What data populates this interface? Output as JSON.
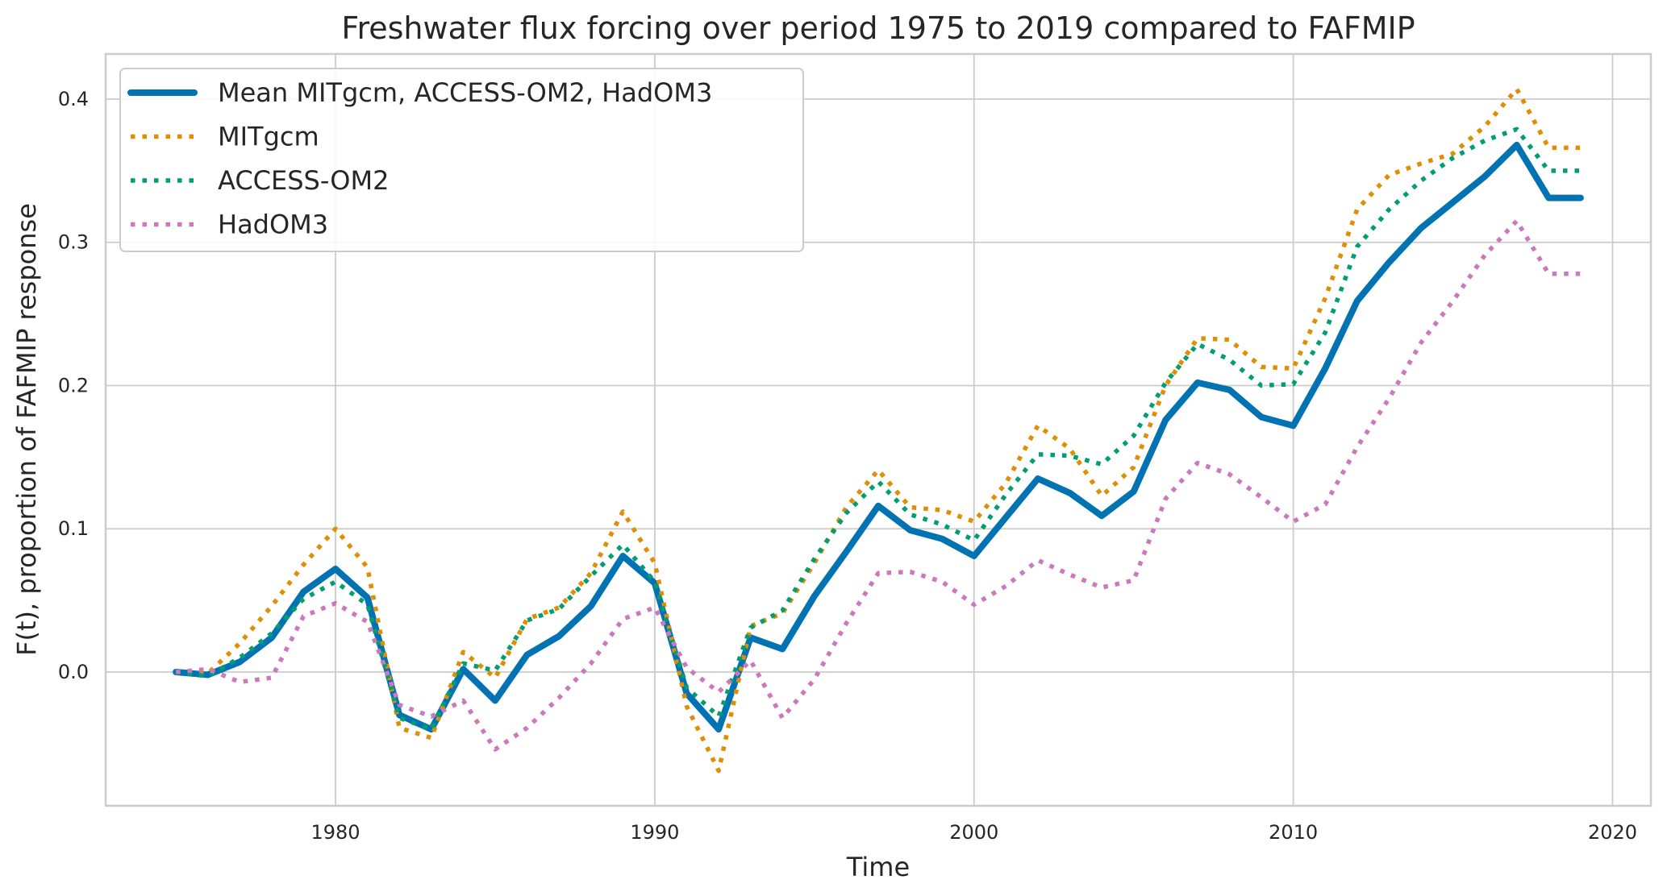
{
  "chart_data": {
    "type": "line",
    "title": "Freshwater flux forcing over period 1975 to 2019 compared to FAFMIP",
    "xlabel": "Time",
    "ylabel": "F(t), proportion of FAFMIP response",
    "xlim": [
      1972.8,
      2021.2
    ],
    "ylim": [
      -0.0934,
      0.4315
    ],
    "xticks": [
      1980,
      1990,
      2000,
      2010,
      2020
    ],
    "xtick_labels": [
      "1980",
      "1990",
      "2000",
      "2010",
      "2020"
    ],
    "yticks": [
      0.0,
      0.1,
      0.2,
      0.3,
      0.4
    ],
    "ytick_labels": [
      "0.0",
      "0.1",
      "0.2",
      "0.3",
      "0.4"
    ],
    "grid": true,
    "legend_position": "top-left",
    "x": [
      1975,
      1976,
      1977,
      1978,
      1979,
      1980,
      1981,
      1982,
      1983,
      1984,
      1985,
      1986,
      1987,
      1988,
      1989,
      1990,
      1991,
      1992,
      1993,
      1994,
      1995,
      1996,
      1997,
      1998,
      1999,
      2000,
      2001,
      2002,
      2003,
      2004,
      2005,
      2006,
      2007,
      2008,
      2009,
      2010,
      2011,
      2012,
      2013,
      2014,
      2015,
      2016,
      2017,
      2018,
      2019
    ],
    "series": [
      {
        "name": "Mean MITgcm, ACCESS-OM2, HadOM3",
        "color": "#0173b2",
        "style": "solid",
        "values": [
          0.0,
          -0.002,
          0.007,
          0.024,
          0.056,
          0.072,
          0.052,
          -0.03,
          -0.04,
          0.002,
          -0.02,
          0.012,
          0.025,
          0.046,
          0.081,
          0.062,
          -0.015,
          -0.04,
          0.024,
          0.016,
          0.053,
          0.084,
          0.116,
          0.099,
          0.093,
          0.081,
          0.108,
          0.135,
          0.125,
          0.109,
          0.126,
          0.176,
          0.202,
          0.197,
          0.178,
          0.172,
          0.212,
          0.259,
          0.286,
          0.31,
          0.328,
          0.346,
          0.368,
          0.331,
          0.331
        ]
      },
      {
        "name": "MITgcm",
        "color": "#de8f05",
        "style": "dotted",
        "values": [
          0.0,
          -0.001,
          0.02,
          0.046,
          0.075,
          0.1,
          0.073,
          -0.039,
          -0.046,
          0.014,
          -0.004,
          0.037,
          0.045,
          0.069,
          0.112,
          0.076,
          -0.024,
          -0.069,
          0.032,
          0.041,
          0.076,
          0.115,
          0.141,
          0.115,
          0.113,
          0.105,
          0.132,
          0.172,
          0.156,
          0.123,
          0.143,
          0.2,
          0.233,
          0.232,
          0.213,
          0.212,
          0.261,
          0.323,
          0.347,
          0.355,
          0.362,
          0.381,
          0.407,
          0.366,
          0.366
        ]
      },
      {
        "name": "ACCESS-OM2",
        "color": "#029e73",
        "style": "dotted",
        "values": [
          0.0,
          -0.003,
          0.01,
          0.027,
          0.051,
          0.063,
          0.047,
          -0.032,
          -0.04,
          0.006,
          0.001,
          0.036,
          0.044,
          0.067,
          0.089,
          0.063,
          -0.011,
          -0.031,
          0.031,
          0.043,
          0.079,
          0.111,
          0.133,
          0.11,
          0.103,
          0.092,
          0.124,
          0.152,
          0.151,
          0.145,
          0.165,
          0.202,
          0.229,
          0.218,
          0.2,
          0.201,
          0.237,
          0.297,
          0.323,
          0.343,
          0.359,
          0.371,
          0.379,
          0.35,
          0.35
        ]
      },
      {
        "name": "HadOM3",
        "color": "#cc78bc",
        "style": "dotted",
        "values": [
          0.0,
          0.002,
          -0.007,
          -0.004,
          0.039,
          0.048,
          0.035,
          -0.023,
          -0.031,
          -0.02,
          -0.054,
          -0.039,
          -0.018,
          0.006,
          0.037,
          0.045,
          0.003,
          -0.014,
          0.008,
          -0.032,
          -0.005,
          0.034,
          0.069,
          0.07,
          0.063,
          0.047,
          0.06,
          0.078,
          0.068,
          0.059,
          0.064,
          0.121,
          0.146,
          0.138,
          0.122,
          0.105,
          0.117,
          0.157,
          0.191,
          0.23,
          0.259,
          0.291,
          0.315,
          0.278,
          0.278
        ]
      }
    ]
  }
}
